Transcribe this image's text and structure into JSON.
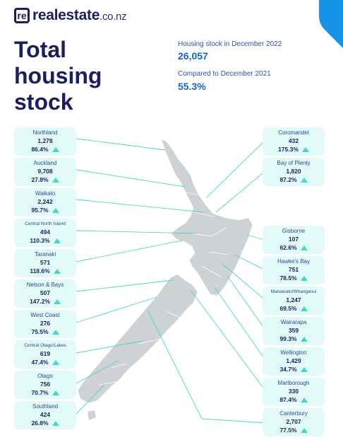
{
  "brand": {
    "name": "realestate",
    "tld": ".co.nz",
    "mark": "re"
  },
  "title": {
    "line1": "Total",
    "line2": "housing",
    "line3": "stock"
  },
  "stats": {
    "stock_label": "Housing stock in December 2022",
    "stock_value": "26,057",
    "compare_label": "Compared to December 2021",
    "compare_value": "55.3%"
  },
  "colors": {
    "card_bg": "#e2fbf8",
    "line": "#46d6c6",
    "map": "#cfd2d5",
    "text": "#1b1f5e",
    "accent": "#1565c8"
  },
  "regions_left": [
    {
      "name": "Northland",
      "count": "1,278",
      "change": "86.4%"
    },
    {
      "name": "Auckland",
      "count": "9,708",
      "change": "27.8%"
    },
    {
      "name": "Waikato",
      "count": "2,242",
      "change": "95.7%"
    },
    {
      "name": "Central North Island",
      "count": "494",
      "change": "110.3%"
    },
    {
      "name": "Taranaki",
      "count": "571",
      "change": "118.6%"
    },
    {
      "name": "Nelson & Bays",
      "count": "507",
      "change": "147.2%"
    },
    {
      "name": "West Coast",
      "count": "276",
      "change": "75.5%"
    },
    {
      "name": "Central Otago/Lakes",
      "count": "619",
      "change": "47.4%"
    },
    {
      "name": "Otago",
      "count": "756",
      "change": "70.7%"
    },
    {
      "name": "Southland",
      "count": "424",
      "change": "26.8%"
    }
  ],
  "regions_right": [
    {
      "name": "Coromandel",
      "count": "432",
      "change": "175.3%"
    },
    {
      "name": "Bay of Plenty",
      "count": "1,820",
      "change": "87.2%"
    },
    {
      "name": "Gisborne",
      "count": "107",
      "change": "62.6%"
    },
    {
      "name": "Hawke's Bay",
      "count": "751",
      "change": "78.5%"
    },
    {
      "name": "Manawatu/Whanganui",
      "count": "1,247",
      "change": "69.5%"
    },
    {
      "name": "Wairarapa",
      "count": "359",
      "change": "99.3%"
    },
    {
      "name": "Wellington",
      "count": "1,429",
      "change": "34.7%"
    },
    {
      "name": "Marlborough",
      "count": "330",
      "change": "87.4%"
    },
    {
      "name": "Canterbury",
      "count": "2,707",
      "change": "77.5%"
    }
  ]
}
